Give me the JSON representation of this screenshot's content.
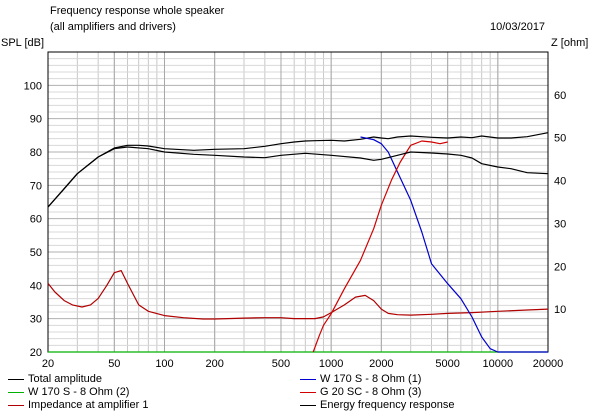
{
  "header": {
    "title": "Frequency response whole speaker",
    "subtitle": "(all amplifiers and drivers)",
    "date": "10/03/2017"
  },
  "chart_data": {
    "type": "line",
    "xscale": "log",
    "xlim": [
      20,
      20000
    ],
    "ylim": [
      20,
      110
    ],
    "y2lim": [
      0,
      70
    ],
    "ylabel": "SPL [dB]",
    "y2label": "Z [ohm]",
    "grid": true,
    "x_ticks": [
      "20",
      "50",
      "100",
      "200",
      "500",
      "1000",
      "2000",
      "5000",
      "10000",
      "20000"
    ],
    "y_ticks": [
      "20",
      "30",
      "40",
      "50",
      "60",
      "70",
      "80",
      "90",
      "100"
    ],
    "y2_ticks": [
      "10",
      "20",
      "30",
      "40",
      "50",
      "60"
    ],
    "series": [
      {
        "name": "Total amplitude",
        "color": "#000000",
        "axis": "left",
        "x": [
          20,
          25,
          30,
          40,
          50,
          60,
          70,
          80,
          100,
          150,
          200,
          300,
          400,
          500,
          600,
          700,
          800,
          1000,
          1200,
          1500,
          1800,
          2000,
          2200,
          2500,
          3000,
          4000,
          5000,
          6000,
          7000,
          8000,
          10000,
          12000,
          15000,
          20000
        ],
        "y": [
          63.5,
          69,
          73.5,
          78.5,
          81.2,
          82,
          82,
          81.8,
          81,
          80.5,
          80.8,
          81,
          81.7,
          82.5,
          83,
          83.3,
          83.4,
          83.5,
          83.3,
          83.8,
          84.5,
          84.2,
          84,
          84.5,
          84.8,
          84.4,
          84.2,
          84.5,
          84.3,
          84.8,
          84.2,
          84.2,
          84.6,
          85.8
        ]
      },
      {
        "name": "W 170 S - 8 Ohm (2)",
        "color": "#00b000",
        "axis": "left",
        "x": [
          20,
          20000
        ],
        "y": [
          20,
          20
        ]
      },
      {
        "name": "Impedance at amplifier 1",
        "color": "#b00000",
        "axis": "right",
        "x": [
          20,
          22,
          25,
          28,
          32,
          36,
          40,
          45,
          50,
          55,
          60,
          70,
          80,
          100,
          130,
          170,
          200,
          300,
          400,
          500,
          600,
          700,
          800,
          900,
          1000,
          1200,
          1400,
          1600,
          1800,
          2000,
          2200,
          2500,
          3000,
          4000,
          5000,
          7000,
          10000,
          15000,
          20000
        ],
        "y": [
          16,
          14,
          12,
          11,
          10.5,
          11,
          12.5,
          15.5,
          18.5,
          19,
          16,
          11,
          9.5,
          8.5,
          8,
          7.7,
          7.7,
          7.9,
          8,
          8,
          7.8,
          7.8,
          7.8,
          8.2,
          9.2,
          11,
          12.8,
          13.2,
          12,
          10,
          9,
          8.7,
          8.6,
          8.8,
          9,
          9.2,
          9.5,
          9.8,
          10
        ]
      },
      {
        "name": "W 170 S - 8 Ohm (1)",
        "color": "#0000d0",
        "axis": "left",
        "x": [
          1500,
          1800,
          2000,
          2200,
          2500,
          3000,
          3500,
          4000,
          5000,
          6000,
          7000,
          8000,
          9000,
          10000,
          20000
        ],
        "y": [
          84.5,
          83.7,
          82.5,
          80,
          74,
          65.5,
          56,
          46.5,
          40.5,
          36,
          30.5,
          24.5,
          21,
          20,
          20
        ]
      },
      {
        "name": "G 20 SC - 8 Ohm (3)",
        "color": "#d00000",
        "axis": "left",
        "x": [
          780,
          850,
          900,
          1000,
          1200,
          1500,
          1800,
          2000,
          2300,
          2600,
          3000,
          3500,
          4000,
          4500,
          5000
        ],
        "y": [
          20,
          25,
          28,
          31.5,
          39,
          47.5,
          57,
          64,
          71.5,
          77,
          82,
          83.3,
          83,
          82.5,
          83
        ]
      },
      {
        "name": "Energy frequency response",
        "color": "#000000",
        "axis": "left",
        "x": [
          20,
          25,
          30,
          40,
          50,
          60,
          80,
          100,
          150,
          200,
          300,
          400,
          500,
          700,
          1000,
          1500,
          1800,
          2000,
          2500,
          3000,
          4000,
          5000,
          6000,
          7000,
          8000,
          10000,
          12000,
          15000,
          20000
        ],
        "y": [
          63.5,
          69,
          73.5,
          78.5,
          81,
          81.5,
          81,
          80,
          79.3,
          79,
          78.5,
          78.3,
          79,
          79.6,
          79,
          78.2,
          77.5,
          77.8,
          79,
          80,
          79.7,
          79.4,
          79,
          78.2,
          76.5,
          75.5,
          75,
          73.8,
          73.5
        ]
      }
    ]
  },
  "legend": [
    {
      "label": "Total amplitude",
      "color": "#000000"
    },
    {
      "label": "W 170 S - 8 Ohm (1)",
      "color": "#0000d0"
    },
    {
      "label": "W 170 S - 8 Ohm (2)",
      "color": "#00b000"
    },
    {
      "label": "G 20 SC - 8 Ohm (3)",
      "color": "#d00000"
    },
    {
      "label": "Impedance at amplifier 1",
      "color": "#b00000"
    },
    {
      "label": "Energy frequency response",
      "color": "#000000"
    }
  ]
}
